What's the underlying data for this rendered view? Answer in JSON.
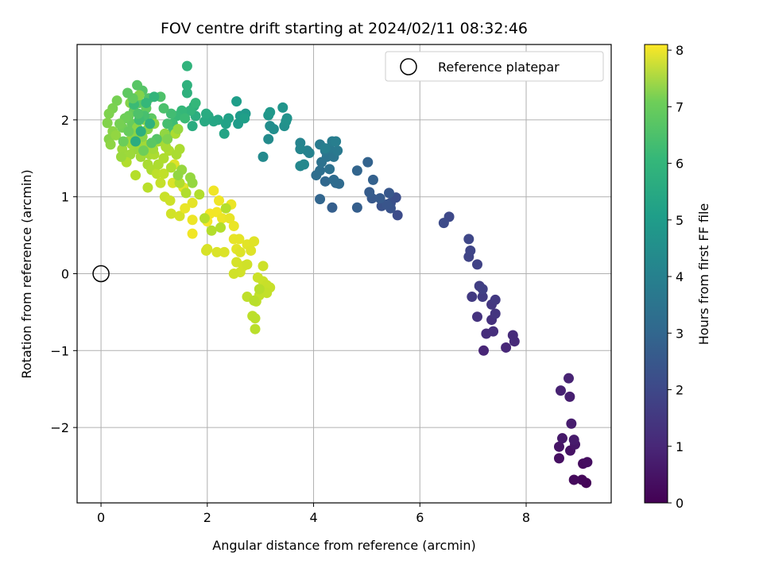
{
  "chart_data": {
    "type": "scatter",
    "title": "FOV centre drift starting at 2024/02/11 08:32:46",
    "xlabel": "Angular distance from reference (arcmin)",
    "ylabel": "Rotation from reference (arcmin)",
    "xlim": [
      -0.45,
      9.6
    ],
    "ylim": [
      -2.98,
      2.98
    ],
    "xticks": [
      0,
      2,
      4,
      6,
      8
    ],
    "yticks": [
      -2,
      -1,
      0,
      1,
      2
    ],
    "grid": true,
    "colormap": "viridis",
    "colorbar": {
      "label": "Hours from first FF file",
      "range": [
        0,
        8.1
      ],
      "ticks": [
        0,
        1,
        2,
        3,
        4,
        5,
        6,
        7,
        8
      ]
    },
    "legend": {
      "position": "top-right",
      "entries": [
        "Reference platepar"
      ]
    },
    "reference_point": {
      "x": 0,
      "y": 0
    },
    "points": [
      [
        9.13,
        -2.72,
        0.1
      ],
      [
        9.05,
        -2.68,
        0.15
      ],
      [
        8.9,
        -2.68,
        0.2
      ],
      [
        9.07,
        -2.47,
        0.25
      ],
      [
        9.15,
        -2.45,
        0.3
      ],
      [
        8.62,
        -2.4,
        0.35
      ],
      [
        8.83,
        -2.3,
        0.4
      ],
      [
        8.62,
        -2.25,
        0.45
      ],
      [
        8.92,
        -2.22,
        0.5
      ],
      [
        8.68,
        -2.14,
        0.55
      ],
      [
        8.9,
        -2.16,
        0.6
      ],
      [
        8.85,
        -1.95,
        0.65
      ],
      [
        8.82,
        -1.6,
        0.7
      ],
      [
        8.65,
        -1.52,
        0.75
      ],
      [
        8.8,
        -1.36,
        0.8
      ],
      [
        7.2,
        -1.0,
        0.85
      ],
      [
        7.62,
        -0.96,
        0.9
      ],
      [
        7.78,
        -0.88,
        0.95
      ],
      [
        7.75,
        -0.8,
        1.0
      ],
      [
        7.25,
        -0.78,
        1.05
      ],
      [
        7.38,
        -0.75,
        1.1
      ],
      [
        7.35,
        -0.6,
        1.15
      ],
      [
        7.08,
        -0.56,
        1.2
      ],
      [
        7.42,
        -0.52,
        1.25
      ],
      [
        7.35,
        -0.4,
        1.3
      ],
      [
        7.42,
        -0.34,
        1.35
      ],
      [
        6.98,
        -0.3,
        1.4
      ],
      [
        7.18,
        -0.3,
        1.45
      ],
      [
        7.12,
        -0.16,
        1.5
      ],
      [
        7.18,
        -0.2,
        1.55
      ],
      [
        7.08,
        0.12,
        1.6
      ],
      [
        6.92,
        0.22,
        1.65
      ],
      [
        6.95,
        0.3,
        1.7
      ],
      [
        6.92,
        0.45,
        1.75
      ],
      [
        6.55,
        0.74,
        1.8
      ],
      [
        6.45,
        0.66,
        1.85
      ],
      [
        5.58,
        0.76,
        1.9
      ],
      [
        5.55,
        0.99,
        1.95
      ],
      [
        5.45,
        0.92,
        2.0
      ],
      [
        5.28,
        0.88,
        2.05
      ],
      [
        5.45,
        0.85,
        2.1
      ],
      [
        5.38,
        0.9,
        2.15
      ],
      [
        5.42,
        1.05,
        2.2
      ],
      [
        5.1,
        0.98,
        2.25
      ],
      [
        5.25,
        0.98,
        2.3
      ],
      [
        5.05,
        1.06,
        2.35
      ],
      [
        4.82,
        0.86,
        2.4
      ],
      [
        4.35,
        0.86,
        2.45
      ],
      [
        5.12,
        1.22,
        2.5
      ],
      [
        5.02,
        1.45,
        2.55
      ],
      [
        4.82,
        1.34,
        2.6
      ],
      [
        4.12,
        0.97,
        2.65
      ],
      [
        4.22,
        1.2,
        2.7
      ],
      [
        4.42,
        1.18,
        2.75
      ],
      [
        4.48,
        1.17,
        2.8
      ],
      [
        4.38,
        1.22,
        2.85
      ],
      [
        4.05,
        1.28,
        2.9
      ],
      [
        4.12,
        1.34,
        2.95
      ],
      [
        4.3,
        1.36,
        3.0
      ],
      [
        4.15,
        1.45,
        3.05
      ],
      [
        4.25,
        1.52,
        3.1
      ],
      [
        4.38,
        1.52,
        3.15
      ],
      [
        4.22,
        1.6,
        3.2
      ],
      [
        4.3,
        1.63,
        3.25
      ],
      [
        4.45,
        1.6,
        3.3
      ],
      [
        4.12,
        1.68,
        3.35
      ],
      [
        4.35,
        1.72,
        3.4
      ],
      [
        4.42,
        1.72,
        3.45
      ],
      [
        4.22,
        1.63,
        3.5
      ],
      [
        3.88,
        1.6,
        3.55
      ],
      [
        3.92,
        1.57,
        3.6
      ],
      [
        3.75,
        1.7,
        3.65
      ],
      [
        3.75,
        1.62,
        3.7
      ],
      [
        3.75,
        1.4,
        3.75
      ],
      [
        3.82,
        1.42,
        3.8
      ],
      [
        3.05,
        1.52,
        3.85
      ],
      [
        3.15,
        1.75,
        3.9
      ],
      [
        3.18,
        1.92,
        3.95
      ],
      [
        3.25,
        1.88,
        4.0
      ],
      [
        3.45,
        1.92,
        4.05
      ],
      [
        3.48,
        1.98,
        4.1
      ],
      [
        3.5,
        2.02,
        4.15
      ],
      [
        3.42,
        2.16,
        4.2
      ],
      [
        3.15,
        2.06,
        4.25
      ],
      [
        3.18,
        2.1,
        4.3
      ],
      [
        2.72,
        2.08,
        4.35
      ],
      [
        2.62,
        2.05,
        4.4
      ],
      [
        2.58,
        1.95,
        4.45
      ],
      [
        2.55,
        2.24,
        4.5
      ],
      [
        2.7,
        2.02,
        4.55
      ],
      [
        2.4,
        2.02,
        4.6
      ],
      [
        2.35,
        1.95,
        4.65
      ],
      [
        2.32,
        1.82,
        4.7
      ],
      [
        2.2,
        2.0,
        4.75
      ],
      [
        2.12,
        1.98,
        4.8
      ],
      [
        2.02,
        2.05,
        4.85
      ],
      [
        1.95,
        1.98,
        4.9
      ],
      [
        1.98,
        2.08,
        4.95
      ],
      [
        1.72,
        1.92,
        5.0
      ],
      [
        1.78,
        2.05,
        5.05
      ],
      [
        1.75,
        2.18,
        5.1
      ],
      [
        1.62,
        2.35,
        5.15
      ],
      [
        1.62,
        2.45,
        5.2
      ],
      [
        1.62,
        2.7,
        5.25
      ],
      [
        1.68,
        2.12,
        5.3
      ],
      [
        1.78,
        2.22,
        5.35
      ],
      [
        1.52,
        2.12,
        5.4
      ],
      [
        1.42,
        2.05,
        5.45
      ],
      [
        1.58,
        2.02,
        5.5
      ],
      [
        1.35,
        1.95,
        5.55
      ],
      [
        1.32,
        2.08,
        5.6
      ],
      [
        1.25,
        1.95,
        5.65
      ],
      [
        1.35,
        1.85,
        5.7
      ],
      [
        1.18,
        2.15,
        5.75
      ],
      [
        1.12,
        2.3,
        5.8
      ],
      [
        0.9,
        2.28,
        5.85
      ],
      [
        0.78,
        2.38,
        5.9
      ],
      [
        0.68,
        2.45,
        5.95
      ],
      [
        0.72,
        2.22,
        6.0
      ],
      [
        0.95,
        2.02,
        6.05
      ],
      [
        0.85,
        2.15,
        6.1
      ],
      [
        0.62,
        2.12,
        6.15
      ],
      [
        0.58,
        1.95,
        6.2
      ],
      [
        0.52,
        2.05,
        6.25
      ],
      [
        0.45,
        2.02,
        6.3
      ],
      [
        0.4,
        1.9,
        6.35
      ],
      [
        0.3,
        2.25,
        6.4
      ],
      [
        0.22,
        2.15,
        6.45
      ],
      [
        0.15,
        2.08,
        6.5
      ],
      [
        0.12,
        1.96,
        6.55
      ],
      [
        0.15,
        1.75,
        6.6
      ],
      [
        0.22,
        1.85,
        6.65
      ],
      [
        0.18,
        1.68,
        6.7
      ],
      [
        0.28,
        1.8,
        6.75
      ],
      [
        0.52,
        1.72,
        6.8
      ],
      [
        0.65,
        1.62,
        6.85
      ],
      [
        0.55,
        1.55,
        6.9
      ],
      [
        0.75,
        1.52,
        6.95
      ],
      [
        0.92,
        1.55,
        7.0
      ],
      [
        0.88,
        1.42,
        7.05
      ],
      [
        0.95,
        1.35,
        7.1
      ],
      [
        0.48,
        1.45,
        7.15
      ],
      [
        0.65,
        1.28,
        7.2
      ],
      [
        0.88,
        1.12,
        7.25
      ],
      [
        1.05,
        1.3,
        7.3
      ],
      [
        1.18,
        1.3,
        7.35
      ],
      [
        1.12,
        1.18,
        7.4
      ],
      [
        1.2,
        1.0,
        7.45
      ],
      [
        1.3,
        0.95,
        7.5
      ],
      [
        1.32,
        0.78,
        7.55
      ],
      [
        1.48,
        0.75,
        7.6
      ],
      [
        1.35,
        1.18,
        7.65
      ],
      [
        1.38,
        1.42,
        7.7
      ],
      [
        1.55,
        1.12,
        7.75
      ],
      [
        1.72,
        0.92,
        7.8
      ],
      [
        1.58,
        0.85,
        7.85
      ],
      [
        1.72,
        0.7,
        7.9
      ],
      [
        1.72,
        0.52,
        7.95
      ],
      [
        2.0,
        0.68,
        8.0
      ],
      [
        2.05,
        0.78,
        7.98
      ],
      [
        2.18,
        0.8,
        7.96
      ],
      [
        2.12,
        1.08,
        7.94
      ],
      [
        2.22,
        0.95,
        7.92
      ],
      [
        2.28,
        0.72,
        7.9
      ],
      [
        2.45,
        0.9,
        7.88
      ],
      [
        2.5,
        0.62,
        7.86
      ],
      [
        2.42,
        0.72,
        7.84
      ],
      [
        2.5,
        0.45,
        7.82
      ],
      [
        2.6,
        0.45,
        7.8
      ],
      [
        2.55,
        0.32,
        7.78
      ],
      [
        2.75,
        0.38,
        7.76
      ],
      [
        2.88,
        0.42,
        7.74
      ],
      [
        2.82,
        0.3,
        7.72
      ],
      [
        2.62,
        0.28,
        7.7
      ],
      [
        2.32,
        0.28,
        7.68
      ],
      [
        2.18,
        0.28,
        7.66
      ],
      [
        2.0,
        0.32,
        7.64
      ],
      [
        1.98,
        0.3,
        7.62
      ],
      [
        2.55,
        0.15,
        7.6
      ],
      [
        2.68,
        0.1,
        7.58
      ],
      [
        2.62,
        0.02,
        7.56
      ],
      [
        2.5,
        0.0,
        7.54
      ],
      [
        2.75,
        0.12,
        7.52
      ],
      [
        3.05,
        0.1,
        7.5
      ],
      [
        2.95,
        -0.05,
        7.48
      ],
      [
        3.05,
        -0.1,
        7.46
      ],
      [
        3.12,
        -0.15,
        7.44
      ],
      [
        3.18,
        -0.18,
        7.42
      ],
      [
        3.05,
        -0.22,
        7.4
      ],
      [
        3.12,
        -0.25,
        7.38
      ],
      [
        2.98,
        -0.28,
        7.36
      ],
      [
        2.92,
        -0.36,
        7.34
      ],
      [
        2.75,
        -0.3,
        7.32
      ],
      [
        2.85,
        -0.55,
        7.3
      ],
      [
        2.9,
        -0.58,
        7.28
      ],
      [
        2.9,
        -0.72,
        7.26
      ],
      [
        2.88,
        -0.35,
        7.24
      ],
      [
        2.98,
        -0.2,
        7.22
      ],
      [
        1.95,
        0.72,
        7.2
      ],
      [
        2.35,
        0.85,
        7.19
      ],
      [
        2.25,
        0.6,
        7.18
      ],
      [
        2.08,
        0.56,
        7.17
      ],
      [
        1.85,
        1.03,
        7.16
      ],
      [
        1.6,
        1.05,
        7.15
      ],
      [
        1.48,
        1.18,
        7.14
      ],
      [
        1.32,
        1.38,
        7.13
      ],
      [
        1.28,
        1.6,
        7.12
      ],
      [
        1.18,
        1.5,
        7.11
      ],
      [
        1.08,
        1.42,
        7.1
      ],
      [
        1.0,
        1.55,
        7.09
      ],
      [
        1.4,
        1.82,
        7.08
      ],
      [
        1.48,
        1.62,
        7.07
      ],
      [
        1.42,
        1.55,
        7.06
      ],
      [
        1.22,
        1.65,
        7.05
      ],
      [
        1.08,
        1.72,
        6.98
      ],
      [
        0.98,
        1.62,
        6.96
      ],
      [
        0.82,
        1.68,
        6.94
      ],
      [
        0.7,
        1.7,
        6.92
      ],
      [
        0.58,
        1.68,
        6.9
      ],
      [
        0.4,
        1.62,
        6.88
      ],
      [
        0.38,
        1.52,
        6.86
      ],
      [
        1.45,
        1.88,
        6.84
      ],
      [
        1.52,
        1.35,
        6.82
      ],
      [
        1.68,
        1.25,
        6.8
      ],
      [
        1.72,
        1.18,
        6.78
      ],
      [
        1.45,
        1.28,
        6.76
      ],
      [
        1.2,
        1.82,
        6.74
      ],
      [
        1.0,
        1.95,
        6.72
      ],
      [
        0.82,
        2.0,
        6.7
      ],
      [
        0.68,
        1.9,
        6.68
      ],
      [
        0.62,
        1.82,
        6.66
      ],
      [
        0.78,
        1.78,
        6.64
      ],
      [
        0.88,
        1.88,
        6.62
      ],
      [
        0.55,
        2.22,
        6.6
      ],
      [
        0.72,
        2.32,
        6.58
      ],
      [
        0.82,
        2.05,
        5.7
      ],
      [
        0.72,
        2.0,
        5.6
      ],
      [
        0.62,
        2.2,
        5.5
      ],
      [
        0.85,
        2.22,
        5.4
      ],
      [
        1.0,
        2.3,
        5.3
      ],
      [
        0.92,
        1.95,
        5.2
      ],
      [
        0.75,
        1.85,
        5.1
      ],
      [
        0.65,
        1.72,
        5.0
      ],
      [
        0.52,
        1.85,
        6.2
      ],
      [
        0.42,
        1.72,
        6.25
      ],
      [
        0.35,
        1.95,
        6.4
      ],
      [
        1.05,
        1.75,
        5.9
      ],
      [
        0.95,
        1.7,
        6.0
      ],
      [
        0.7,
        2.08,
        5.8
      ],
      [
        0.6,
        2.28,
        6.1
      ],
      [
        0.5,
        2.35,
        6.05
      ],
      [
        1.25,
        1.75,
        6.5
      ],
      [
        0.8,
        1.6,
        6.3
      ]
    ]
  }
}
